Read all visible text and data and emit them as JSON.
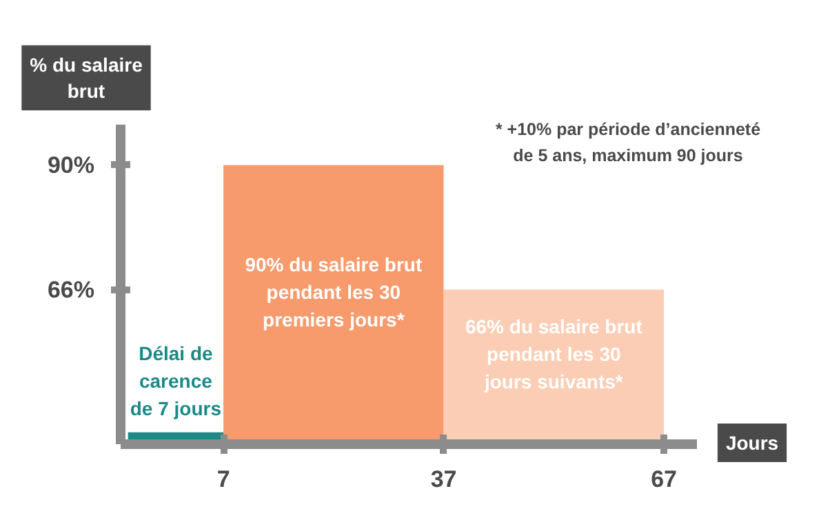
{
  "chart_data": {
    "type": "area",
    "ylabel": "% du salaire\nbrut",
    "xlabel": "Jours",
    "xlim": [
      -7,
      71.5
    ],
    "ylim": [
      36.2,
      97.8
    ],
    "xticks": [
      7,
      37,
      67
    ],
    "yticks": [
      {
        "value": 66,
        "label": "66%"
      },
      {
        "value": 90,
        "label": "90%"
      }
    ],
    "series": [
      {
        "color": "#1b8a87",
        "x": [
          -6,
          7
        ],
        "values": [
          38.5,
          38.5
        ]
      },
      {
        "color": "#f79a6c",
        "x": [
          7,
          37
        ],
        "values": [
          90,
          90
        ]
      },
      {
        "color": "#fbcdb4",
        "x": [
          37,
          67
        ],
        "values": [
          66,
          66
        ]
      }
    ],
    "annotations": [
      "Délai de\ncarence\nde 7 jours",
      "90% du salaire brut\npendant les 30\npremiers jours*",
      "66% du salaire brut\npendant les 30\njours suivants*",
      "* +10% par période d’ancienneté\nde 5 ans, maximum 90 jours"
    ],
    "grid": false
  }
}
